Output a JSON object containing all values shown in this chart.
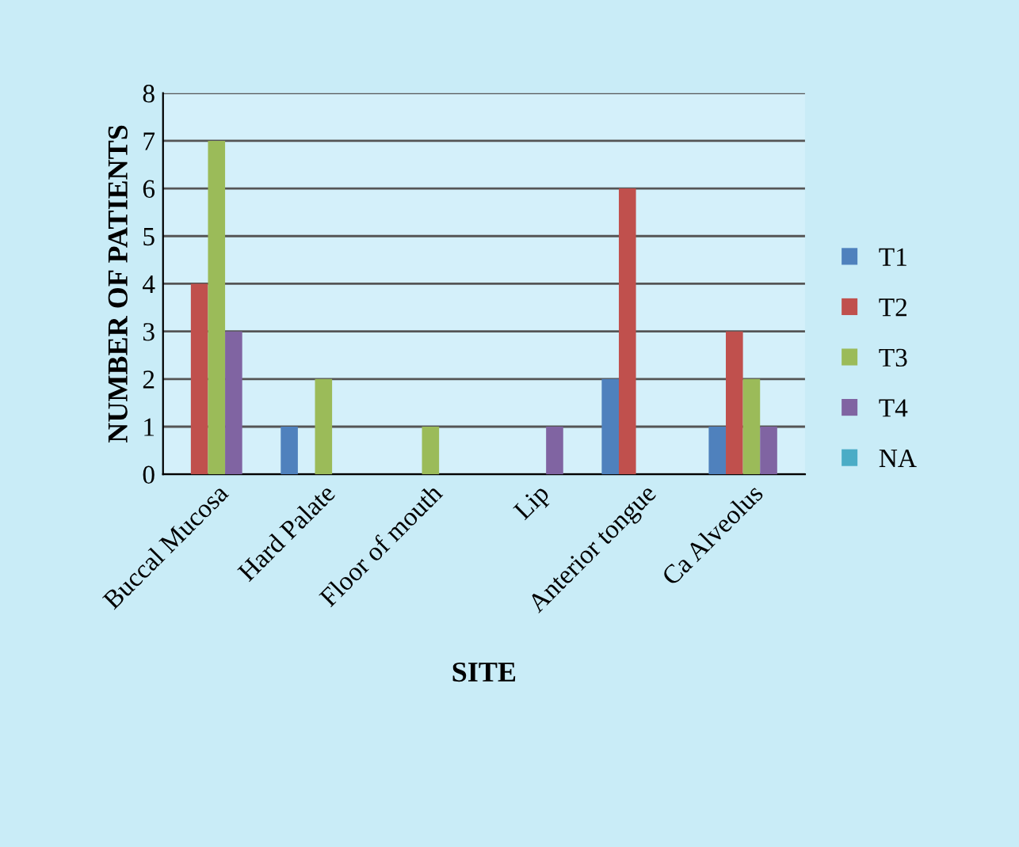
{
  "chart_data": {
    "type": "bar",
    "xlabel": "SITE",
    "ylabel": "NUMBER OF PATIENTS",
    "categories": [
      "Buccal Mucosa",
      "Hard Palate",
      "Floor of mouth",
      "Lip",
      "Anterior tongue",
      "Ca Alveolus"
    ],
    "series": [
      {
        "name": "T1",
        "color": "#4f81bd",
        "values": [
          0,
          1,
          0,
          0,
          2,
          1
        ]
      },
      {
        "name": "T2",
        "color": "#c0504d",
        "values": [
          4,
          0,
          0,
          0,
          6,
          3
        ]
      },
      {
        "name": "T3",
        "color": "#9bbb59",
        "values": [
          7,
          2,
          1,
          0,
          0,
          2
        ]
      },
      {
        "name": "T4",
        "color": "#8064a2",
        "values": [
          3,
          0,
          0,
          1,
          0,
          1
        ]
      },
      {
        "name": "NA",
        "color": "#4bacc6",
        "values": [
          0,
          0,
          0,
          0,
          0,
          0
        ]
      }
    ],
    "ylim": [
      0,
      8
    ],
    "yticks": [
      0,
      1,
      2,
      3,
      4,
      5,
      6,
      7,
      8
    ],
    "grid": "y",
    "legend": "right"
  }
}
